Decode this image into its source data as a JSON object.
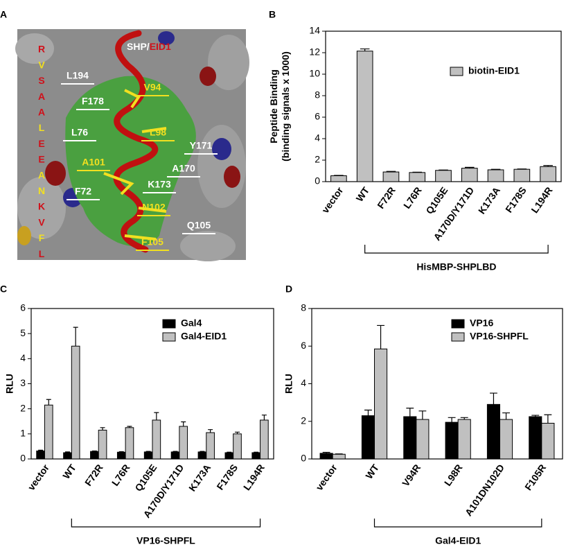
{
  "panel_a": {
    "letter": "A",
    "title": "SHP/",
    "title_highlight": "EID1",
    "sequence": [
      {
        "text": "R",
        "color": "#d0101a"
      },
      {
        "text": "V",
        "color": "#f2e020"
      },
      {
        "text": "S",
        "color": "#d0101a"
      },
      {
        "text": "A",
        "color": "#d0101a"
      },
      {
        "text": "A",
        "color": "#d0101a"
      },
      {
        "text": "L",
        "color": "#f2e020"
      },
      {
        "text": "E",
        "color": "#d0101a"
      },
      {
        "text": "E",
        "color": "#d0101a"
      },
      {
        "text": "A",
        "color": "#f2e020"
      },
      {
        "text": "N",
        "color": "#f2e020"
      },
      {
        "text": "K",
        "color": "#d0101a"
      },
      {
        "text": "V",
        "color": "#d0101a"
      },
      {
        "text": "F",
        "color": "#f2e020"
      },
      {
        "text": "L",
        "color": "#d0101a"
      }
    ],
    "residues": [
      {
        "text": "L194",
        "color": "#ffffff"
      },
      {
        "text": "F178",
        "color": "#ffffff"
      },
      {
        "text": "V94",
        "color": "#f2e020"
      },
      {
        "text": "L76",
        "color": "#ffffff"
      },
      {
        "text": "L98",
        "color": "#f2e020"
      },
      {
        "text": "Y171",
        "color": "#ffffff"
      },
      {
        "text": "A101",
        "color": "#f2e020"
      },
      {
        "text": "A170",
        "color": "#ffffff"
      },
      {
        "text": "K173",
        "color": "#ffffff"
      },
      {
        "text": "F72",
        "color": "#ffffff"
      },
      {
        "text": "N102",
        "color": "#f2e020"
      },
      {
        "text": "Q105",
        "color": "#ffffff"
      },
      {
        "text": "F105",
        "color": "#f2e020"
      }
    ]
  },
  "chart_data": [
    {
      "type": "bar",
      "letter": "B",
      "ylabel": [
        "Peptide Binding",
        "(binding signals x 1000)"
      ],
      "categories": [
        "vector",
        "WT",
        "F72R",
        "L76R",
        "Q105E",
        "A170D/Y171D",
        "K173A",
        "F178S",
        "L194R"
      ],
      "series": [
        {
          "name": "biotin-EID1",
          "color": "#c0c0c0",
          "values": [
            0.55,
            12.15,
            0.9,
            0.85,
            1.05,
            1.25,
            1.1,
            1.15,
            1.4
          ],
          "errors": [
            0.03,
            0.2,
            0.05,
            0.03,
            0.03,
            0.08,
            0.05,
            0.03,
            0.1
          ]
        }
      ],
      "ylim": [
        0,
        14
      ],
      "yticks": [
        0,
        2,
        4,
        6,
        8,
        10,
        12,
        14
      ],
      "legend": "upper right",
      "group_label": "HisMBP-SHPLBD"
    },
    {
      "type": "bar",
      "letter": "C",
      "ylabel": [
        "RLU"
      ],
      "categories": [
        "vector",
        "WT",
        "F72R",
        "L76R",
        "Q105E",
        "A170D/Y171D",
        "K173A",
        "F178S",
        "L194R"
      ],
      "series": [
        {
          "name": "Gal4",
          "color": "#000000",
          "values": [
            0.32,
            0.25,
            0.3,
            0.27,
            0.28,
            0.28,
            0.28,
            0.25,
            0.25
          ],
          "errors": [
            0.03,
            0.03,
            0.02,
            0.02,
            0.02,
            0.02,
            0.02,
            0.02,
            0.02
          ]
        },
        {
          "name": "Gal4-EID1",
          "color": "#c0c0c0",
          "values": [
            2.15,
            4.5,
            1.15,
            1.25,
            1.55,
            1.3,
            1.05,
            1.0,
            1.55
          ],
          "errors": [
            0.22,
            0.75,
            0.1,
            0.05,
            0.3,
            0.18,
            0.12,
            0.07,
            0.2
          ]
        }
      ],
      "ylim": [
        0,
        6
      ],
      "yticks": [
        0,
        1,
        2,
        3,
        4,
        5,
        6
      ],
      "legend": "upper right",
      "group_label": "VP16-SHPFL"
    },
    {
      "type": "bar",
      "letter": "D",
      "ylabel": [
        "RLU"
      ],
      "categories": [
        "vector",
        "WT",
        "V94R",
        "L98R",
        "A101DN102D",
        "F105R"
      ],
      "series": [
        {
          "name": "VP16",
          "color": "#000000",
          "values": [
            0.3,
            2.3,
            2.25,
            1.95,
            2.9,
            2.25
          ],
          "errors": [
            0.05,
            0.3,
            0.45,
            0.25,
            0.6,
            0.07
          ]
        },
        {
          "name": "VP16-SHPFL",
          "color": "#c0c0c0",
          "values": [
            0.25,
            5.85,
            2.1,
            2.1,
            2.1,
            1.9
          ],
          "errors": [
            0.02,
            1.25,
            0.45,
            0.1,
            0.35,
            0.45
          ]
        }
      ],
      "ylim": [
        0,
        8
      ],
      "yticks": [
        0,
        2,
        4,
        6,
        8
      ],
      "legend": "upper right",
      "group_label": "Gal4-EID1"
    }
  ]
}
